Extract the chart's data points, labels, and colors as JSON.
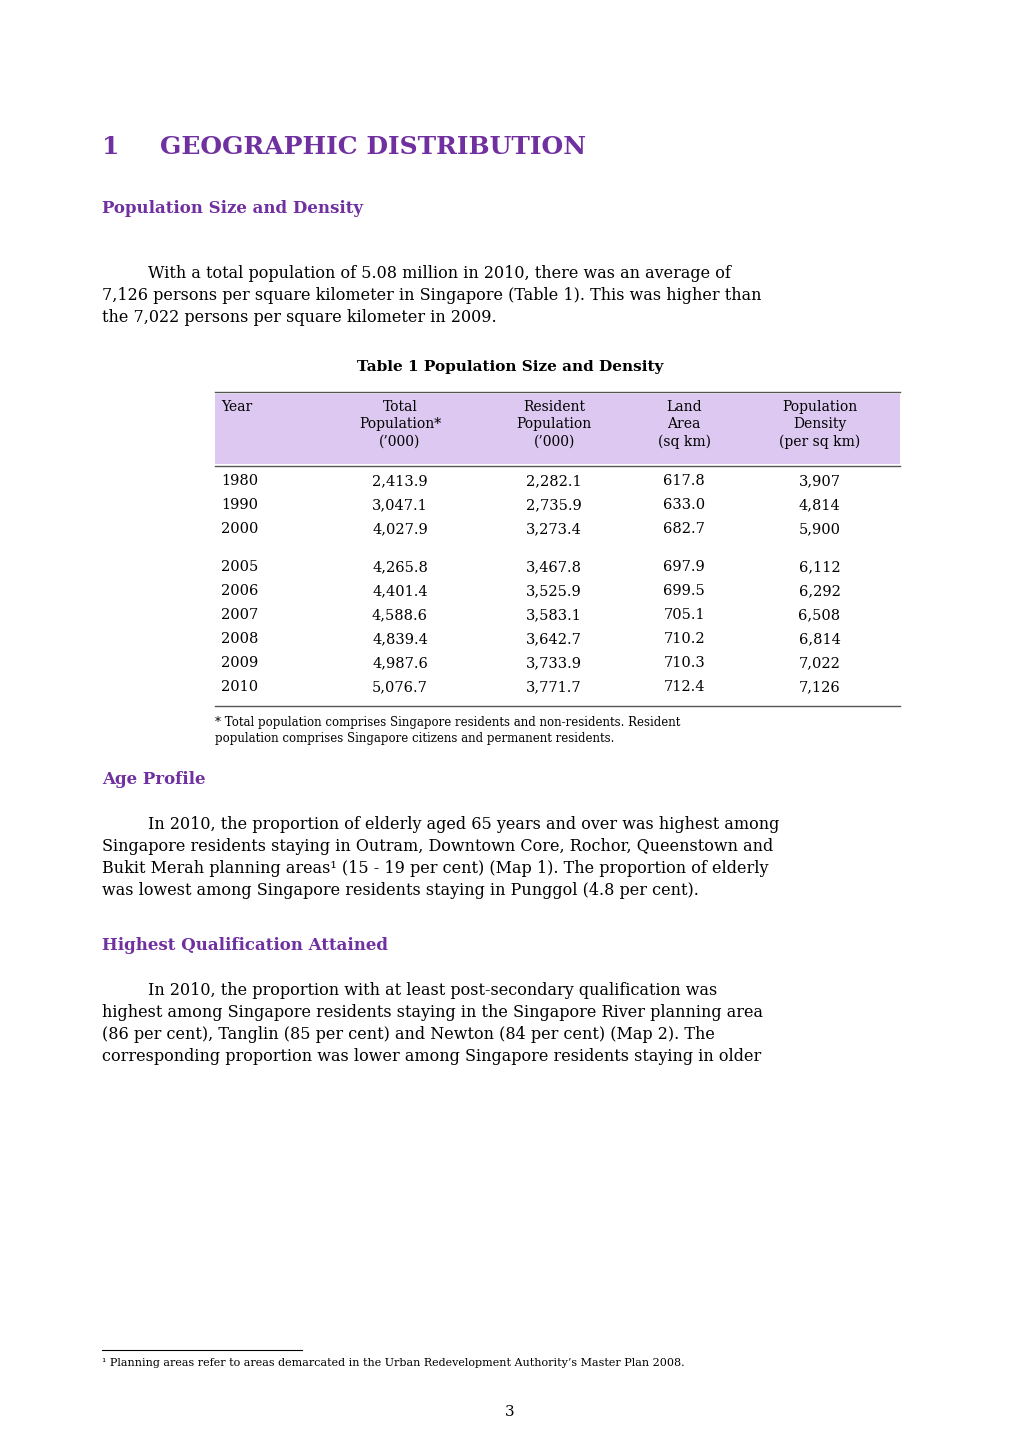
{
  "page_bg": "#ffffff",
  "purple_heading": "#7030a0",
  "black_text": "#000000",
  "chapter_number": "1",
  "chapter_title": "GEOGRAPHIC DISTRIBUTION",
  "section1_title": "Population Size and Density",
  "para1_line1": "With a total population of 5.08 million in 2010, there was an average of",
  "para1_line2": "7,126 persons per square kilometer in Singapore (Table 1). This was higher than",
  "para1_line3": "the 7,022 persons per square kilometer in 2009.",
  "table_title": "Table 1 Population Size and Density",
  "table_header": [
    "Year",
    "Total\nPopulation*\n(’000)",
    "Resident\nPopulation\n(’000)",
    "Land\nArea\n(sq km)",
    "Population\nDensity\n(per sq km)"
  ],
  "table_rows": [
    [
      "1980",
      "2,413.9",
      "2,282.1",
      "617.8",
      "3,907"
    ],
    [
      "1990",
      "3,047.1",
      "2,735.9",
      "633.0",
      "4,814"
    ],
    [
      "2000",
      "4,027.9",
      "3,273.4",
      "682.7",
      "5,900"
    ],
    [
      "",
      "",
      "",
      "",
      ""
    ],
    [
      "2005",
      "4,265.8",
      "3,467.8",
      "697.9",
      "6,112"
    ],
    [
      "2006",
      "4,401.4",
      "3,525.9",
      "699.5",
      "6,292"
    ],
    [
      "2007",
      "4,588.6",
      "3,583.1",
      "705.1",
      "6,508"
    ],
    [
      "2008",
      "4,839.4",
      "3,642.7",
      "710.2",
      "6,814"
    ],
    [
      "2009",
      "4,987.6",
      "3,733.9",
      "710.3",
      "7,022"
    ],
    [
      "2010",
      "5,076.7",
      "3,771.7",
      "712.4",
      "7,126"
    ]
  ],
  "table_note_line1": "* Total population comprises Singapore residents and non-residents. Resident",
  "table_note_line2": "population comprises Singapore citizens and permanent residents.",
  "table_header_bg": "#dcc8f0",
  "section2_title": "Age Profile",
  "para2_line1": "In 2010, the proportion of elderly aged 65 years and over was highest among",
  "para2_line2": "Singapore residents staying in Outram, Downtown Core, Rochor, Queenstown and",
  "para2_line3": "Bukit Merah planning areas¹ (15 - 19 per cent) (Map 1). The proportion of elderly",
  "para2_line4": "was lowest among Singapore residents staying in Punggol (4.8 per cent).",
  "section3_title": "Highest Qualification Attained",
  "para3_line1": "In 2010, the proportion with at least post-secondary qualification was",
  "para3_line2": "highest among Singapore residents staying in the Singapore River planning area",
  "para3_line3": "(86 per cent), Tanglin (85 per cent) and Newton (84 per cent) (Map 2). The",
  "para3_line4": "corresponding proportion was lower among Singapore residents staying in older",
  "footnote": "¹ Planning areas refer to areas demarcated in the Urban Redevelopment Authority’s Master Plan 2008.",
  "page_number": "3"
}
